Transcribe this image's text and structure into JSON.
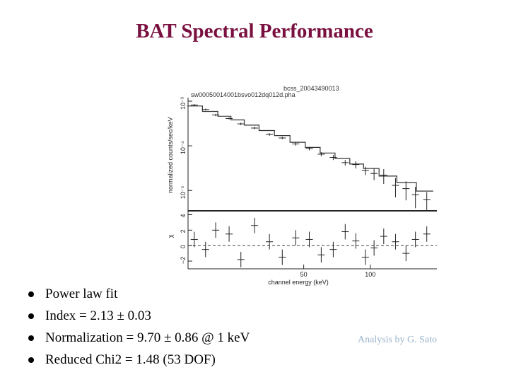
{
  "slide": {
    "title": "BAT Spectral Performance",
    "bullets": [
      "Power law fit",
      "Index = 2.13 ± 0.03",
      "Normalization = 9.70 ± 0.86 @ 1 keV",
      "Reduced Chi2 = 1.48 (53 DOF)"
    ],
    "credit": "Analysis by G. Sato"
  },
  "chart_data": {
    "type": "scatter",
    "header_lines": [
      "bcss_20043490013",
      "sw00050014001bsvo012dq012d.pha"
    ],
    "xlabel": "channel energy (keV)",
    "xscale": "log",
    "xlim": [
      15,
      200
    ],
    "xticks": [
      {
        "value": 50,
        "label": "50"
      },
      {
        "value": 100,
        "label": "100"
      }
    ],
    "panels": [
      {
        "name": "spectrum",
        "ylabel": "normalized counts/sec/keV",
        "yscale": "log",
        "ylim": [
          3.5e-06,
          0.0012
        ],
        "yticks": [
          {
            "value": 0.001,
            "label": "10⁻³"
          },
          {
            "value": 0.0001,
            "label": "10⁻⁴"
          },
          {
            "value": 1e-05,
            "label": "10⁻⁵"
          }
        ],
        "series": [
          {
            "kind": "model",
            "x": [
              16,
              19,
              22,
              25,
              29,
              34,
              40,
              47,
              55,
              64,
              75,
              87,
              100,
              120,
              145,
              180
            ],
            "y": [
              0.00078,
              0.00059,
              0.00046,
              0.00038,
              0.00029,
              0.00022,
              0.00017,
              0.00012,
              9.2e-05,
              6.9e-05,
              5.2e-05,
              3.9e-05,
              3.1e-05,
              2.1e-05,
              1.5e-05,
              9.7e-06
            ]
          },
          {
            "kind": "data",
            "x": [
              16,
              18,
              20,
              23,
              26,
              30,
              35,
              40,
              46,
              53,
              60,
              68,
              77,
              86,
              95,
              104,
              115,
              130,
              145,
              160,
              180
            ],
            "y": [
              0.00082,
              0.00065,
              0.00049,
              0.00041,
              0.00031,
              0.00025,
              0.00018,
              0.00015,
              0.00011,
              8.7e-05,
              6.5e-05,
              5.5e-05,
              4.2e-05,
              3.8e-05,
              2.8e-05,
              2.4e-05,
              2.2e-05,
              1.3e-05,
              1.1e-05,
              8e-06,
              6.2e-06
            ],
            "yerr": [
              4e-05,
              3e-05,
              3e-05,
              2e-05,
              2e-05,
              1.5e-05,
              1.2e-05,
              1e-05,
              9e-06,
              8e-06,
              7e-06,
              7e-06,
              6e-06,
              7e-06,
              6e-06,
              7e-06,
              8e-06,
              6e-06,
              5e-06,
              4e-06,
              3e-06
            ]
          }
        ]
      },
      {
        "name": "residuals",
        "ylabel": "χ",
        "ylim": [
          -3,
          4.5
        ],
        "yticks": [
          {
            "value": -2,
            "label": "−2"
          },
          {
            "value": 0,
            "label": "0"
          },
          {
            "value": 2,
            "label": "2"
          },
          {
            "value": 4,
            "label": "4"
          }
        ],
        "reference_line": 0,
        "series": [
          {
            "kind": "residual",
            "x": [
              16,
              18,
              20,
              23,
              26,
              30,
              35,
              40,
              46,
              53,
              60,
              68,
              77,
              86,
              95,
              104,
              115,
              130,
              145,
              160,
              180
            ],
            "y": [
              0.8,
              -0.5,
              2.0,
              1.5,
              -1.8,
              2.6,
              0.5,
              -1.5,
              1.0,
              0.8,
              -1.2,
              -0.5,
              1.8,
              0.6,
              -1.5,
              -0.3,
              1.2,
              0.5,
              -1.0,
              0.8,
              1.5
            ]
          }
        ]
      }
    ]
  }
}
